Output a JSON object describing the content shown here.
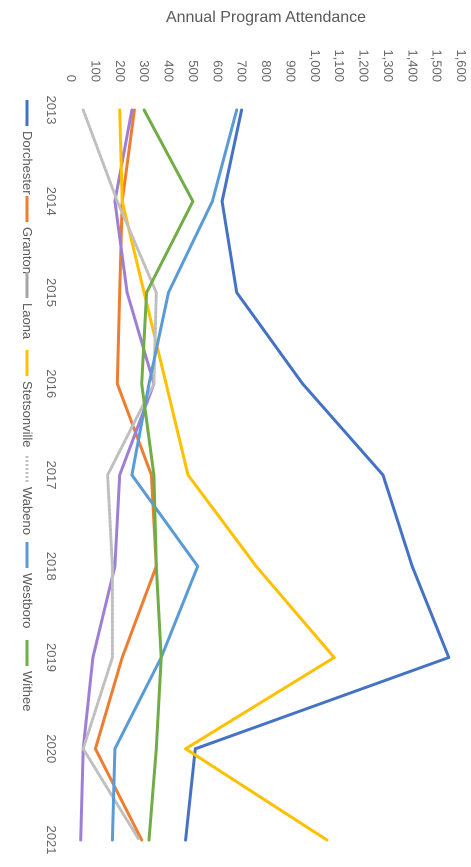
{
  "chart_data": {
    "type": "line",
    "title": "",
    "xlabel": "",
    "ylabel": "Annual Program Attendance",
    "x": [
      "2013",
      "2014",
      "2015",
      "2016",
      "2017",
      "2018",
      "2019",
      "2020",
      "2021"
    ],
    "ylim": [
      0,
      1600
    ],
    "y_ticks": [
      "0",
      "100",
      "200",
      "300",
      "400",
      "500",
      "600",
      "700",
      "800",
      "900",
      "1,000",
      "1,100",
      "1,200",
      "1,300",
      "1,400",
      "1,500",
      "1,600"
    ],
    "grid": false,
    "legend_position": "bottom",
    "orientation": "rotated 90 degrees clockwise",
    "series": [
      {
        "name": "Dorchester",
        "color": "#4472c4",
        "values": [
          700,
          620,
          680,
          950,
          1280,
          1400,
          1550,
          510,
          470
        ]
      },
      {
        "name": "Granton",
        "color": "#ed7d31",
        "values": [
          260,
          210,
          200,
          190,
          330,
          350,
          210,
          100,
          290
        ]
      },
      {
        "name": "Laona",
        "color": "#a5a5a5",
        "lineColor": "#9e7fd6",
        "values": [
          250,
          180,
          230,
          340,
          200,
          180,
          90,
          50,
          40
        ]
      },
      {
        "name": "Stetsonville",
        "color": "#ffc000",
        "values": [
          200,
          210,
          300,
          390,
          480,
          760,
          1080,
          470,
          1050
        ]
      },
      {
        "name": "Wabeno",
        "color": "#bfbfbf",
        "values": [
          50,
          190,
          350,
          340,
          150,
          170,
          170,
          50,
          280
        ]
      },
      {
        "name": "Westboro",
        "color": "#5b9bd5",
        "values": [
          680,
          580,
          400,
          320,
          250,
          520,
          370,
          180,
          170
        ]
      },
      {
        "name": "Withee",
        "color": "#70ad47",
        "values": [
          300,
          500,
          310,
          290,
          340,
          350,
          370,
          350,
          320
        ]
      }
    ]
  }
}
